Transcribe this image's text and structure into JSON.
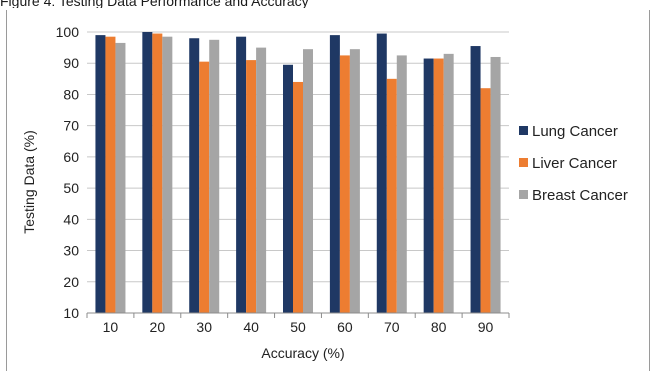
{
  "caption": "Figure 4: Testing Data Performance and Accuracy",
  "chart_data": {
    "type": "bar",
    "title": "",
    "xlabel": "Accuracy (%)",
    "ylabel": "Testing Data (%)",
    "ylim": [
      10,
      100
    ],
    "yticks": [
      10,
      20,
      30,
      40,
      50,
      60,
      70,
      80,
      90,
      100
    ],
    "grid": true,
    "legend_position": "right",
    "categories": [
      "10",
      "20",
      "30",
      "40",
      "50",
      "60",
      "70",
      "80",
      "90"
    ],
    "series": [
      {
        "name": "Lung Cancer",
        "color": "#1f3864",
        "values": [
          99,
          100,
          98,
          98.5,
          89.5,
          99,
          99.5,
          91.5,
          95.5
        ]
      },
      {
        "name": "Liver Cancer",
        "color": "#ed7d31",
        "values": [
          98.5,
          99.5,
          90.5,
          91,
          84,
          92.5,
          85,
          91.5,
          82
        ]
      },
      {
        "name": "Breast Cancer",
        "color": "#a5a5a5",
        "values": [
          96.5,
          98.5,
          97.5,
          95,
          94.5,
          94.5,
          92.5,
          93,
          92
        ]
      }
    ]
  }
}
